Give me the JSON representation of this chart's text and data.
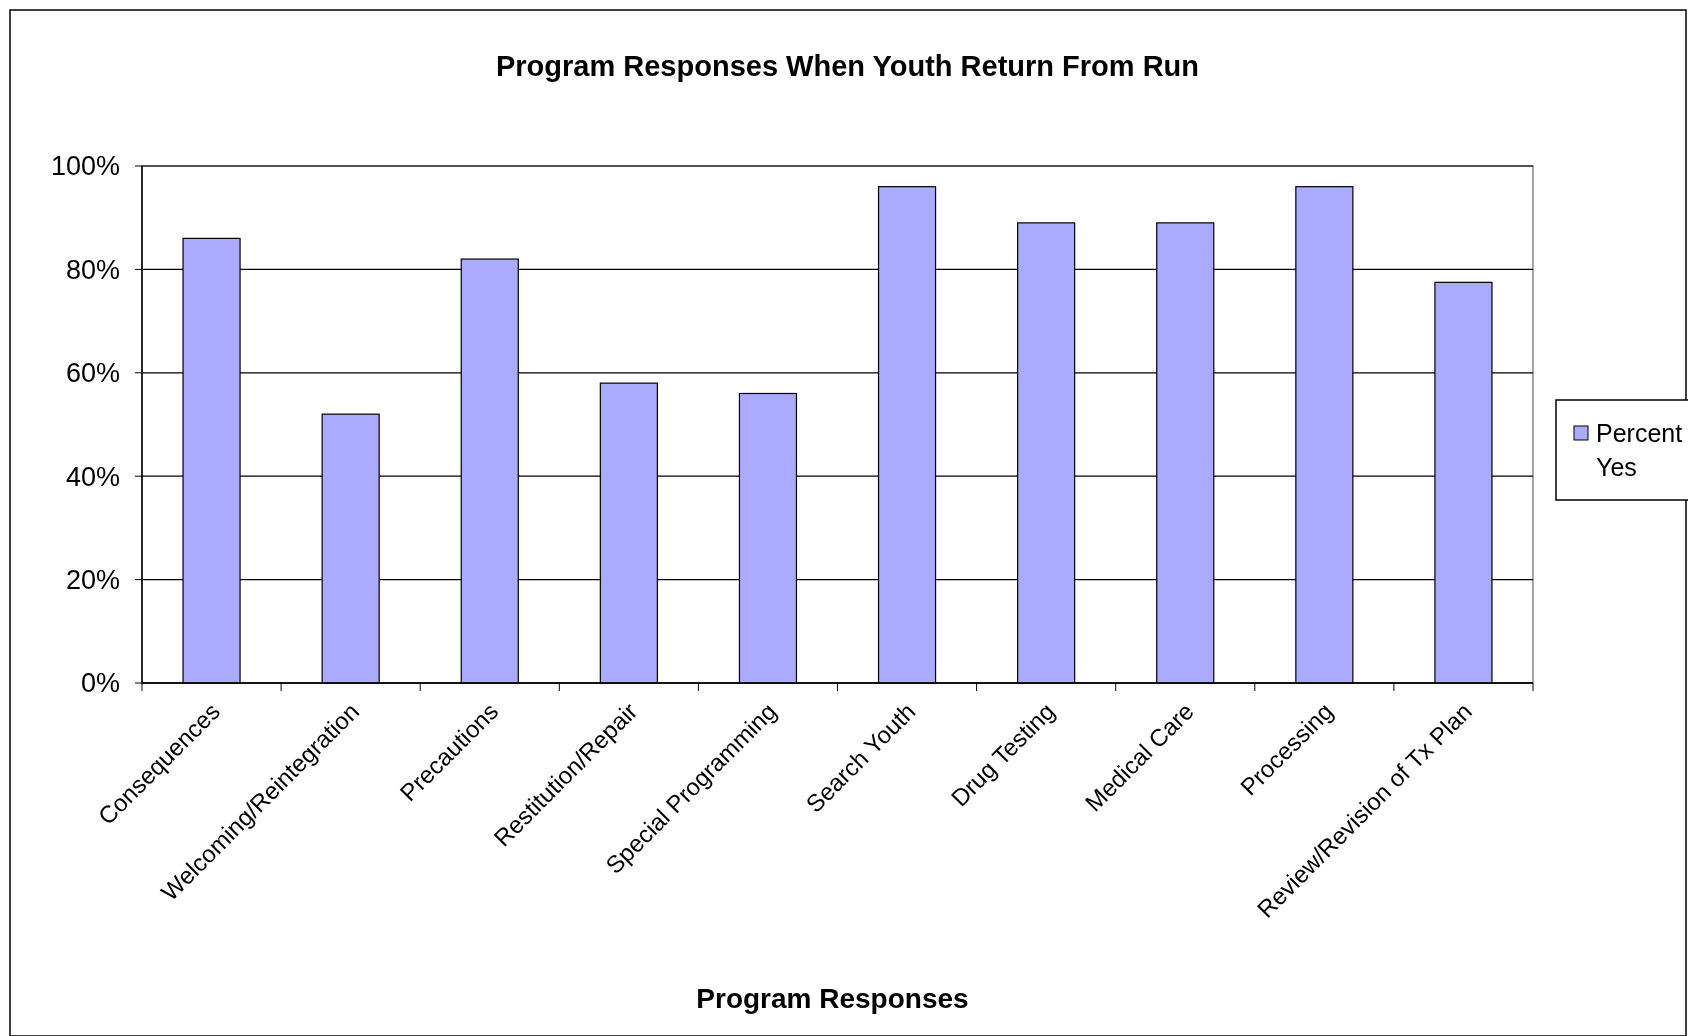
{
  "chart_data": {
    "type": "bar",
    "title": "Program Responses When Youth Return From Run",
    "xlabel": "Program Responses",
    "categories": [
      "Consequences",
      "Welcoming/Reintegration",
      "Precautions",
      "Restitution/Repair",
      "Special Programming",
      "Search Youth",
      "Drug Testing",
      "Medical Care",
      "Processing",
      "Review/Revision of Tx Plan"
    ],
    "series": [
      {
        "name": "Percent Yes",
        "color": "#aaaaff",
        "values": [
          86,
          52,
          82,
          58,
          56,
          96,
          89,
          89,
          96,
          77.5
        ]
      }
    ],
    "ylim": [
      0,
      100
    ],
    "yticks": [
      {
        "value": 0,
        "label": "0%"
      },
      {
        "value": 20,
        "label": "20%"
      },
      {
        "value": 40,
        "label": "40%"
      },
      {
        "value": 60,
        "label": "60%"
      },
      {
        "value": 80,
        "label": "80%"
      },
      {
        "value": 100,
        "label": "100%"
      }
    ],
    "grid": "y",
    "legend": "right"
  }
}
